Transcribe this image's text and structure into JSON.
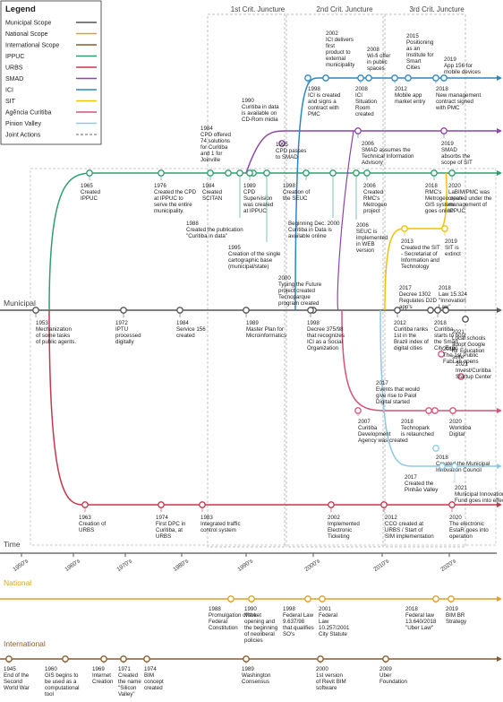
{
  "colors": {
    "municipal": "#555555",
    "national": "#e0a020",
    "international": "#8b5a2b",
    "ippuc": "#2e9e6e",
    "urbs": "#c4384d",
    "smad": "#8e44ad",
    "ici": "#2e86c1",
    "sit": "#f2c200",
    "agencia": "#d4547a",
    "pinhao": "#8ecae6",
    "joint": "#999999"
  },
  "legend": {
    "title": "Legend",
    "items": [
      {
        "label": "Municipal Scope",
        "color": "#555555",
        "dashed": false
      },
      {
        "label": "National Scope",
        "color": "#e0a020",
        "dashed": false
      },
      {
        "label": "International Scope",
        "color": "#8b5a2b",
        "dashed": false
      },
      {
        "label": "IPPUC",
        "color": "#2e9e6e",
        "dashed": false
      },
      {
        "label": "URBS",
        "color": "#c4384d",
        "dashed": false
      },
      {
        "label": "SMAD",
        "color": "#8e44ad",
        "dashed": false
      },
      {
        "label": "ICI",
        "color": "#2e86c1",
        "dashed": false
      },
      {
        "label": "SIT",
        "color": "#f2c200",
        "dashed": false
      },
      {
        "label": "Agência Curitiba",
        "color": "#d4547a",
        "dashed": false
      },
      {
        "label": "Pinion Valley",
        "color": "#8ecae6",
        "dashed": false
      },
      {
        "label": "Joint Actions",
        "color": "#999999",
        "dashed": true
      }
    ]
  },
  "junctures": [
    "1st Crit. Juncture",
    "2nd Crit. Juncture",
    "3rd Crit. Juncture"
  ],
  "sections": {
    "municipal": "Municipal",
    "time": "Time",
    "national": "National",
    "international": "International"
  },
  "decades": [
    "1950's",
    "1960's",
    "1970's",
    "1980's",
    "1990's",
    "2000's",
    "2010's",
    "2020's"
  ],
  "events": [
    {
      "year": "1965",
      "text": [
        "Created",
        "IPPUC"
      ]
    },
    {
      "year": "1976",
      "text": [
        "Created the CPD",
        "at IPPUC to",
        "serve the entire",
        "municipality."
      ]
    },
    {
      "year": "1984",
      "text": [
        "Created",
        "SCITAN"
      ]
    },
    {
      "year": "1984",
      "text": [
        "CPD offered",
        "74 solutions",
        "for Curitiba",
        "and 1 for",
        "Joinville"
      ]
    },
    {
      "year": "1990",
      "text": [
        "Curitiba in data",
        "is available on",
        "CD-Rom midia"
      ]
    },
    {
      "year": "1989",
      "text": [
        "CPD",
        "Supervision",
        "was created",
        "at IPPUC"
      ]
    },
    {
      "year": "1988",
      "text": [
        "Created the publication",
        "\"Curitiba in data\""
      ]
    },
    {
      "year": "1995",
      "text": [
        "Creation of the single",
        "cartographic base",
        "(municipal/state)"
      ]
    },
    {
      "year": "1995",
      "text": [
        "CPD passes",
        "to SMAD"
      ]
    },
    {
      "year": "1998",
      "text": [
        "Creation of",
        "the SEUC"
      ]
    },
    {
      "year": "",
      "text": [
        "Beginning Dec. 2000",
        "Curitiba in Data is",
        "available online"
      ]
    },
    {
      "year": "2002",
      "text": [
        "ICI delivers",
        "first",
        "product to",
        "external",
        "municipality"
      ]
    },
    {
      "year": "1998",
      "text": [
        "ICI is created",
        "and signs a",
        "contract with",
        "PMC"
      ]
    },
    {
      "year": "2008",
      "text": [
        "Wi-fi offer",
        "in public",
        "spaces"
      ]
    },
    {
      "year": "2008",
      "text": [
        "ICI",
        "Situation",
        "Room",
        "created"
      ]
    },
    {
      "year": "2006",
      "text": [
        "SMAD assumes the",
        "Technical Information",
        "Advisory"
      ]
    },
    {
      "year": "2006",
      "text": [
        "Created",
        "RMC's",
        "Metrogeo",
        "project"
      ]
    },
    {
      "year": "2006",
      "text": [
        "SEUC is",
        "implemented",
        "in WEB",
        "version"
      ]
    },
    {
      "year": "2015",
      "text": [
        "Positioning",
        "as an",
        "Institute for",
        "Smart",
        "Cities"
      ]
    },
    {
      "year": "2012",
      "text": [
        "Mobile app",
        "market entry"
      ]
    },
    {
      "year": "2019",
      "text": [
        "App 156 for",
        "mobile devices"
      ]
    },
    {
      "year": "2018",
      "text": [
        "New management",
        "contract signed",
        "with PMC"
      ]
    },
    {
      "year": "2019",
      "text": [
        "SMAD",
        "absorbs the",
        "scope of SIT"
      ]
    },
    {
      "year": "2018",
      "text": [
        "RMC's",
        "Metrogeo open",
        "GIS system",
        "goes online"
      ]
    },
    {
      "year": "2020",
      "text": [
        "LaBIM/PMC was",
        "created under the",
        "management of",
        "IPPUC"
      ]
    },
    {
      "year": "2013",
      "text": [
        "Created the SIT",
        "- Secretariat of",
        "Information and",
        "Technology"
      ]
    },
    {
      "year": "2019",
      "text": [
        "SIT is",
        "extinct"
      ]
    },
    {
      "year": "2000",
      "text": [
        "Typing the Future",
        "project created",
        "Tecnoparque",
        "program created"
      ]
    },
    {
      "year": "1953",
      "text": [
        "Mechanization",
        "of some tasks",
        "of public agents."
      ]
    },
    {
      "year": "1972",
      "text": [
        "IPTU",
        "processed",
        "digitally"
      ]
    },
    {
      "year": "1984",
      "text": [
        "Service 156",
        "created"
      ]
    },
    {
      "year": "1989",
      "text": [
        "Master Plan for",
        "Microinformatics"
      ]
    },
    {
      "year": "1998",
      "text": [
        "Decree 375/98",
        "that recognizes",
        "ICI as a Social",
        "Organization"
      ]
    },
    {
      "year": "2017",
      "text": [
        "Decree 1302",
        "Regulates D2D",
        "app's"
      ]
    },
    {
      "year": "2018",
      "text": [
        "Law 15.324",
        "\"Innovation",
        "Law\""
      ]
    },
    {
      "year": "2021",
      "text": [
        "Local schools",
        "adopt Google",
        "for Education",
        "suite"
      ]
    },
    {
      "year": "2012",
      "text": [
        "Curitiba ranks",
        "1st in the",
        "Brazil index of",
        "digital cities"
      ]
    },
    {
      "year": "2018",
      "text": [
        "Curitiba",
        "starts to host",
        "the Smart",
        "City Expo"
      ]
    },
    {
      "year": "2019",
      "text": [
        "The 1st Public",
        "FabLab opens"
      ]
    },
    {
      "year": "2021",
      "text": [
        "Invest/Curitiba",
        "Startup Center"
      ]
    },
    {
      "year": "2017",
      "text": [
        "Events that would",
        "give rise to Paiol",
        "Digital started"
      ]
    },
    {
      "year": "2007",
      "text": [
        "Curitiba",
        "Development",
        "Agency was created"
      ]
    },
    {
      "year": "2018",
      "text": [
        "Technopark",
        "is relaunched"
      ]
    },
    {
      "year": "2020",
      "text": [
        "Worktiba",
        "Digital"
      ]
    },
    {
      "year": "2018",
      "text": [
        "Created the Municipal",
        "Innovation Council"
      ]
    },
    {
      "year": "2017",
      "text": [
        "Created the",
        "Pinhão Valley"
      ]
    },
    {
      "year": "2021",
      "text": [
        "Municipal Innovation",
        "Fund goes into effect"
      ]
    },
    {
      "year": "1963",
      "text": [
        "Creation of",
        "URBS"
      ]
    },
    {
      "year": "1974",
      "text": [
        "First DPC in",
        "Curitiba, at",
        "URBS"
      ]
    },
    {
      "year": "1983",
      "text": [
        "Integrated traffic",
        "control system"
      ]
    },
    {
      "year": "2002",
      "text": [
        "Implemented",
        "Electronic",
        "Ticketing"
      ]
    },
    {
      "year": "2012",
      "text": [
        "CCO created at",
        "URBS / Start of",
        "SIM implementation"
      ]
    },
    {
      "year": "2020",
      "text": [
        "The electronic",
        "EstaR goes into",
        "operation"
      ]
    },
    {
      "year": "1988",
      "text": [
        "Promulgation of the",
        "Federal",
        "Constitution"
      ]
    },
    {
      "year": "1990",
      "text": [
        "Market",
        "opening and",
        "the beginning",
        "of neoliberal",
        "policies"
      ]
    },
    {
      "year": "1998",
      "text": [
        "Federal Law",
        "9.637/98",
        "that qualifies",
        "SO's"
      ]
    },
    {
      "year": "2001",
      "text": [
        "Federal",
        "Law",
        "10.257/2001",
        "City Statute"
      ]
    },
    {
      "year": "2018",
      "text": [
        "Federal law",
        "13.640/2018",
        "\"Uber Law\""
      ]
    },
    {
      "year": "2019",
      "text": [
        "BIM BR",
        "Strategy"
      ]
    },
    {
      "year": "1945",
      "text": [
        "End of the",
        "Second",
        "World War"
      ]
    },
    {
      "year": "1960",
      "text": [
        "GIS begins to",
        "be used as a",
        "computational",
        "tool"
      ]
    },
    {
      "year": "1969",
      "text": [
        "Internet",
        "Creation"
      ]
    },
    {
      "year": "1971",
      "text": [
        "Created",
        "the name",
        "\"Silicon",
        "Valley\""
      ]
    },
    {
      "year": "1974",
      "text": [
        "BIM",
        "concept",
        "created"
      ]
    },
    {
      "year": "1989",
      "text": [
        "Washington",
        "Consensus"
      ]
    },
    {
      "year": "2000",
      "text": [
        "1st version",
        "of Revit BIM",
        "software"
      ]
    },
    {
      "year": "2009",
      "text": [
        "Uber",
        "Foundation"
      ]
    }
  ]
}
